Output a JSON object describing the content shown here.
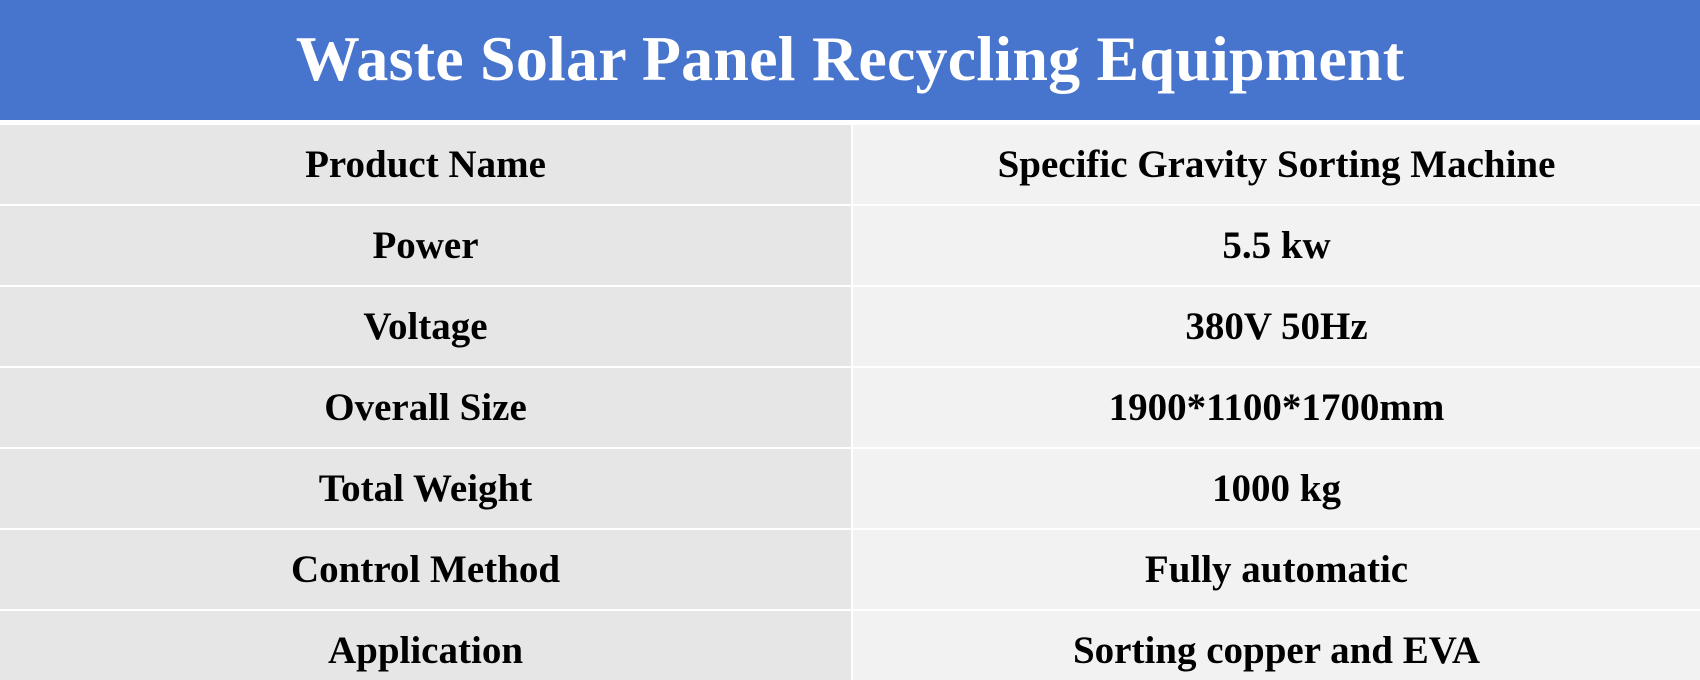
{
  "title": "Waste Solar Panel Recycling Equipment",
  "colors": {
    "header_background": "#4774cd",
    "header_text": "#ffffff",
    "label_column_background": "#e6e6e6",
    "value_column_background": "#f2f2f2",
    "cell_text": "#000000"
  },
  "rows": [
    {
      "label": "Product Name",
      "value": "Specific Gravity Sorting Machine"
    },
    {
      "label": "Power",
      "value": "5.5 kw"
    },
    {
      "label": "Voltage",
      "value": "380V 50Hz"
    },
    {
      "label": "Overall Size",
      "value": "1900*1100*1700mm"
    },
    {
      "label": "Total Weight",
      "value": "1000 kg"
    },
    {
      "label": "Control Method",
      "value": "Fully automatic"
    },
    {
      "label": "Application",
      "value": "Sorting copper and EVA"
    }
  ]
}
